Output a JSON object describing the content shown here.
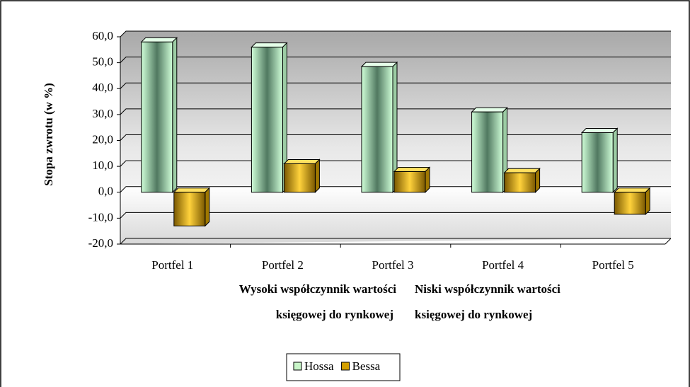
{
  "chart_data": {
    "type": "bar",
    "y_label": "Stopa zwrotu (w %)",
    "categories": [
      "Portfel 1",
      "Portfel 2",
      "Portfel 3",
      "Portfel 4",
      "Portfel 5"
    ],
    "series": [
      {
        "name": "Hossa",
        "color": "#c8f5c8",
        "values": [
          58,
          56,
          48.5,
          31,
          23
        ]
      },
      {
        "name": "Bessa",
        "color": "#d4a000",
        "values": [
          -13,
          11,
          8,
          7.5,
          -8.5
        ]
      }
    ],
    "annotations": [
      [
        "Wysoki współczynnik wartości",
        "księgowej do rynkowej"
      ],
      [
        "Niski współczynnik wartości",
        "księgowej do rynkowej"
      ]
    ],
    "ylim": [
      -20,
      60
    ],
    "yticks": [
      {
        "value": -20,
        "label": "-20,0"
      },
      {
        "value": -10,
        "label": "-10,0"
      },
      {
        "value": 0,
        "label": "0,0"
      },
      {
        "value": 10,
        "label": "10,0"
      },
      {
        "value": 20,
        "label": "20,0"
      },
      {
        "value": 30,
        "label": "30,0"
      },
      {
        "value": 40,
        "label": "40,0"
      },
      {
        "value": 50,
        "label": "50,0"
      },
      {
        "value": 60,
        "label": "60,0"
      }
    ],
    "grid": true,
    "legend": "bottom"
  }
}
